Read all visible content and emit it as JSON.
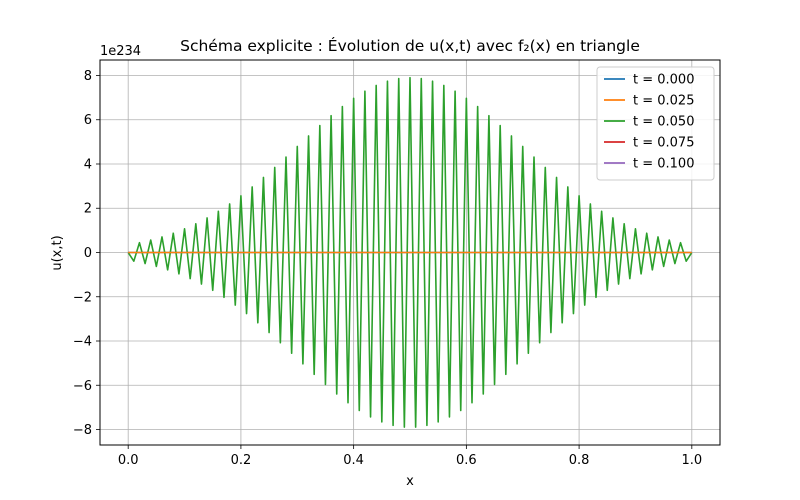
{
  "chart_data": {
    "type": "line",
    "title": "Schéma explicite : Évolution de u(x,t) avec f₂(x) en triangle",
    "xlabel": "x",
    "ylabel": "u(x,t)",
    "y_offset_text": "1e234",
    "xlim": [
      -0.05,
      1.05
    ],
    "ylim": [
      -8.7,
      8.7
    ],
    "xticks": [
      0.0,
      0.2,
      0.4,
      0.6,
      0.8,
      1.0
    ],
    "xtick_labels": [
      "0.0",
      "0.2",
      "0.4",
      "0.6",
      "0.8",
      "1.0"
    ],
    "yticks": [
      -8,
      -6,
      -4,
      -2,
      0,
      2,
      4,
      6,
      8
    ],
    "ytick_labels": [
      "−8",
      "−6",
      "−4",
      "−2",
      "0",
      "2",
      "4",
      "6",
      "8"
    ],
    "grid": true,
    "legend_position": "top-right",
    "y_scale_factor": "1e234",
    "oscillation": {
      "points": 101,
      "x_start": 0.0,
      "x_end": 1.0,
      "peak_amplitude": 7.9,
      "profile": "gaussian",
      "center": 0.5,
      "width": 0.2
    },
    "series": [
      {
        "name": "t = 0.000",
        "color": "#1f77b4",
        "kind": "flat",
        "value": 0
      },
      {
        "name": "t = 0.025",
        "color": "#ff7f0e",
        "kind": "flat",
        "value": 0
      },
      {
        "name": "t = 0.050",
        "color": "#2ca02c",
        "kind": "oscillating"
      },
      {
        "name": "t = 0.075",
        "color": "#d62728",
        "kind": "hidden"
      },
      {
        "name": "t = 0.100",
        "color": "#9467bd",
        "kind": "hidden"
      }
    ]
  }
}
